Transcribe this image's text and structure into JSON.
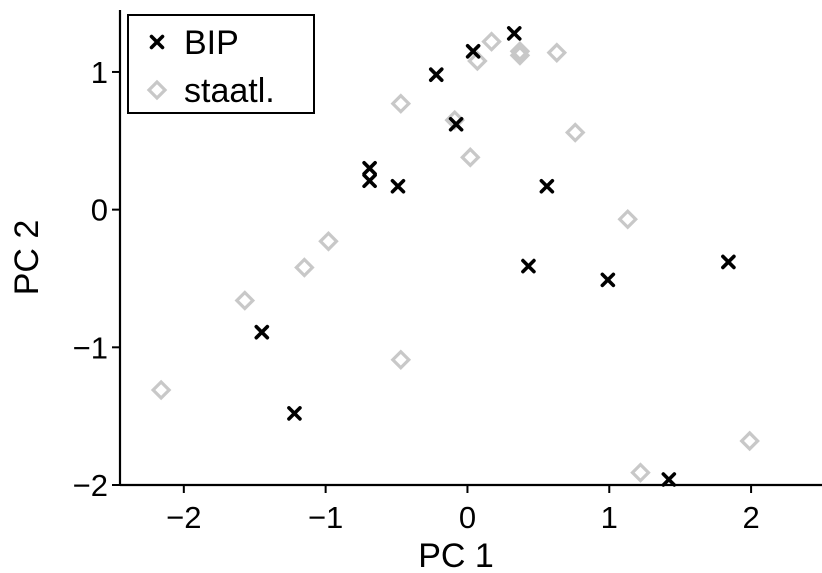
{
  "chart_data": {
    "type": "scatter",
    "xlabel": "PC 1",
    "ylabel": "PC 2",
    "xlim": [
      -2.45,
      2.5
    ],
    "ylim": [
      -2.0,
      1.45
    ],
    "xticks": [
      -2,
      -1,
      0,
      1,
      2
    ],
    "yticks": [
      -2,
      -1,
      0,
      1
    ],
    "xtick_labels": [
      "−2",
      "−1",
      "0",
      "1",
      "2"
    ],
    "ytick_labels": [
      "−2",
      "−1",
      "0",
      "1"
    ],
    "grid": false,
    "legend": {
      "placement": "top-left"
    },
    "series": [
      {
        "name": "BIP",
        "marker": "x",
        "color": "#000000",
        "points": [
          {
            "x": 0.33,
            "y": 1.28
          },
          {
            "x": 0.04,
            "y": 1.15
          },
          {
            "x": -0.22,
            "y": 0.98
          },
          {
            "x": -0.08,
            "y": 0.62
          },
          {
            "x": -0.69,
            "y": 0.3
          },
          {
            "x": -0.69,
            "y": 0.21
          },
          {
            "x": -0.49,
            "y": 0.17
          },
          {
            "x": 0.56,
            "y": 0.17
          },
          {
            "x": 0.43,
            "y": -0.41
          },
          {
            "x": 0.99,
            "y": -0.51
          },
          {
            "x": 1.84,
            "y": -0.38
          },
          {
            "x": -1.45,
            "y": -0.89
          },
          {
            "x": -1.22,
            "y": -1.48
          },
          {
            "x": 1.42,
            "y": -1.96
          }
        ]
      },
      {
        "name": "staatl.",
        "marker": "diamond",
        "color": "#c8c8c8",
        "points": [
          {
            "x": 0.17,
            "y": 1.22
          },
          {
            "x": 0.37,
            "y": 1.15
          },
          {
            "x": 0.37,
            "y": 1.12
          },
          {
            "x": 0.63,
            "y": 1.14
          },
          {
            "x": 0.07,
            "y": 1.08
          },
          {
            "x": -0.47,
            "y": 0.77
          },
          {
            "x": -0.09,
            "y": 0.65
          },
          {
            "x": 0.76,
            "y": 0.56
          },
          {
            "x": 0.02,
            "y": 0.38
          },
          {
            "x": 1.13,
            "y": -0.07
          },
          {
            "x": -0.98,
            "y": -0.23
          },
          {
            "x": -1.15,
            "y": -0.42
          },
          {
            "x": -1.57,
            "y": -0.66
          },
          {
            "x": -0.47,
            "y": -1.09
          },
          {
            "x": -2.16,
            "y": -1.31
          },
          {
            "x": 1.22,
            "y": -1.91
          },
          {
            "x": 1.99,
            "y": -1.68
          }
        ]
      }
    ]
  }
}
